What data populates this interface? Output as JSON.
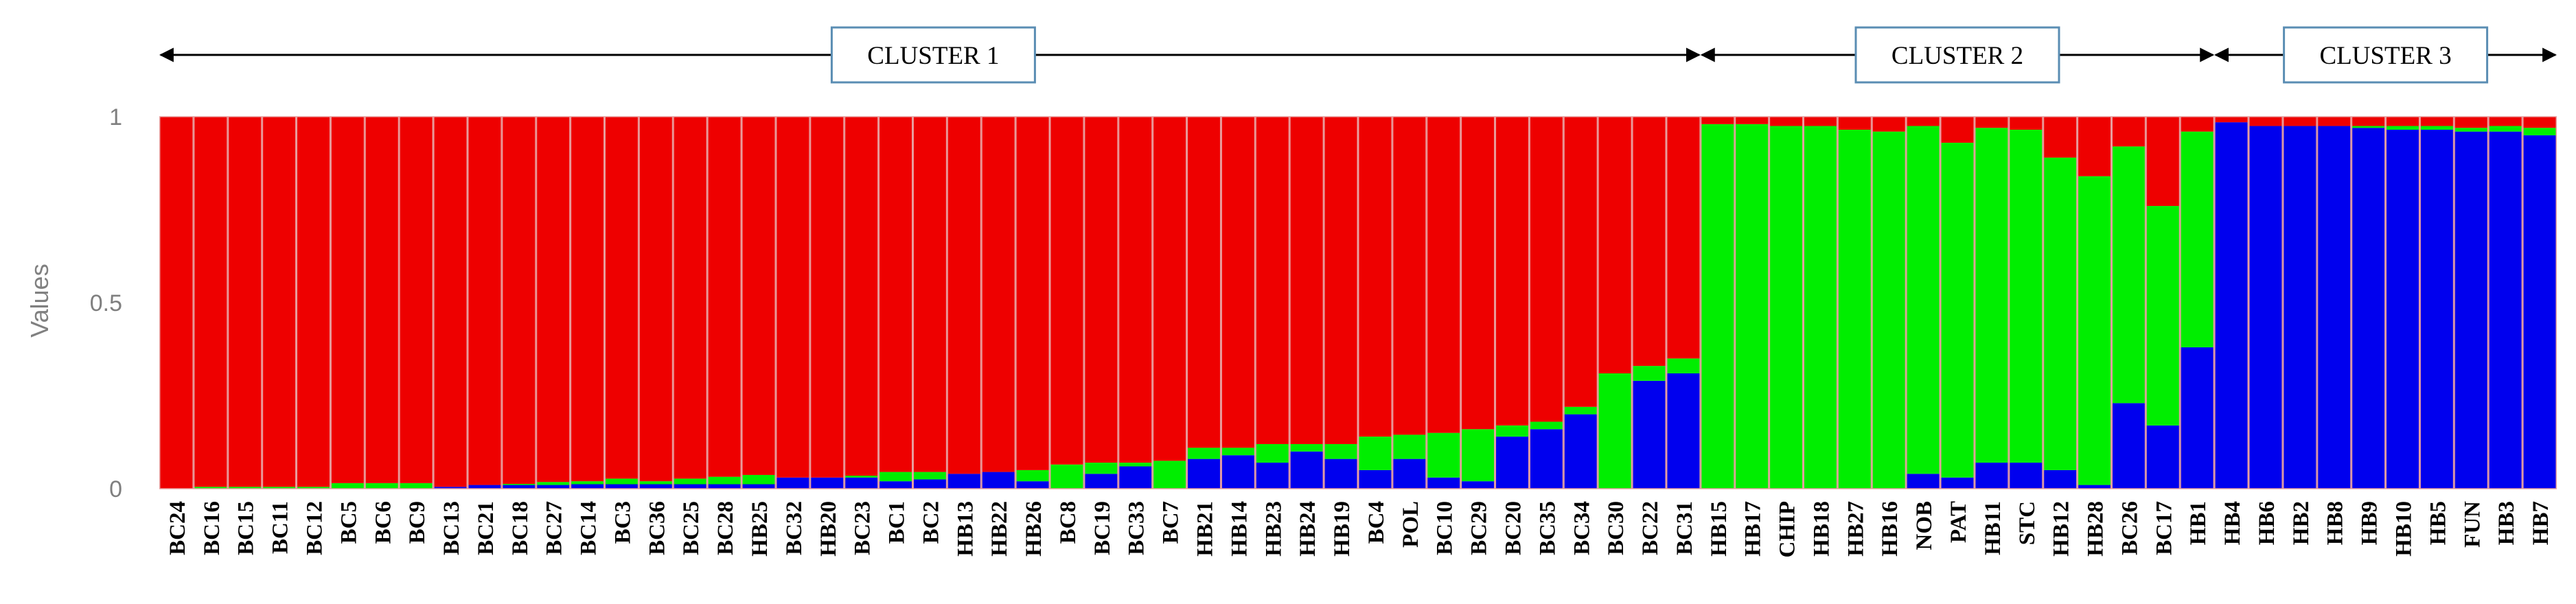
{
  "chart_data": {
    "type": "bar",
    "stacked": true,
    "ylabel": "Values",
    "ylim": [
      0,
      1
    ],
    "yticks": [
      "0",
      "0.5",
      "1"
    ],
    "grid": false,
    "legend": "none",
    "colors": {
      "blue": "#0000ee",
      "green": "#00ee00",
      "red": "#ee0000",
      "outline": "#e8a0a0",
      "arrow": "#000000",
      "cluster_box_border": "#5a8db3"
    },
    "clusters": [
      {
        "label": "CLUSTER 1",
        "from": "BC24",
        "to": "BC31"
      },
      {
        "label": "CLUSTER 2",
        "from": "HB15",
        "to": "HB1"
      },
      {
        "label": "CLUSTER 3",
        "from": "HB4",
        "to": "HB7"
      }
    ],
    "categories": [
      "BC24",
      "BC16",
      "BC15",
      "BC11",
      "BC12",
      "BC5",
      "BC6",
      "BC9",
      "BC13",
      "BC21",
      "BC18",
      "BC27",
      "BC14",
      "BC3",
      "BC36",
      "BC25",
      "BC28",
      "HB25",
      "BC32",
      "HB20",
      "BC23",
      "BC1",
      "BC2",
      "HB13",
      "HB22",
      "HB26",
      "BC8",
      "BC19",
      "BC33",
      "BC7",
      "HB21",
      "HB14",
      "HB23",
      "HB24",
      "HB19",
      "BC4",
      "POL",
      "BC10",
      "BC29",
      "BC20",
      "BC35",
      "BC34",
      "BC30",
      "BC22",
      "BC31",
      "HB15",
      "HB17",
      "CHIP",
      "HB18",
      "HB27",
      "HB16",
      "NOB",
      "PAT",
      "HB11",
      "STC",
      "HB12",
      "HB28",
      "BC26",
      "BC17",
      "HB1",
      "HB4",
      "HB6",
      "HB2",
      "HB8",
      "HB9",
      "HB10",
      "HB5",
      "FUN",
      "HB3",
      "HB7"
    ],
    "series": [
      {
        "name": "",
        "color": "blue",
        "values": [
          0.0,
          0.0,
          0.0,
          0.0,
          0.0,
          0.0,
          0.0,
          0.0,
          0.005,
          0.01,
          0.01,
          0.01,
          0.012,
          0.012,
          0.012,
          0.012,
          0.012,
          0.012,
          0.03,
          0.03,
          0.03,
          0.02,
          0.025,
          0.04,
          0.045,
          0.02,
          0.0,
          0.04,
          0.06,
          0.0,
          0.08,
          0.09,
          0.07,
          0.1,
          0.08,
          0.05,
          0.08,
          0.03,
          0.02,
          0.14,
          0.16,
          0.2,
          0.0,
          0.29,
          0.31,
          0.0,
          0.0,
          0.0,
          0.0,
          0.0,
          0.0,
          0.04,
          0.03,
          0.07,
          0.07,
          0.05,
          0.01,
          0.23,
          0.17,
          0.38,
          0.985,
          0.975,
          0.975,
          0.975,
          0.97,
          0.965,
          0.965,
          0.96,
          0.96,
          0.95
        ]
      },
      {
        "name": "",
        "color": "green",
        "values": [
          0.0,
          0.005,
          0.005,
          0.005,
          0.005,
          0.015,
          0.015,
          0.015,
          0.0,
          0.0,
          0.003,
          0.008,
          0.008,
          0.015,
          0.008,
          0.015,
          0.02,
          0.025,
          0.0,
          0.0,
          0.005,
          0.025,
          0.02,
          0.0,
          0.0,
          0.03,
          0.065,
          0.03,
          0.01,
          0.075,
          0.03,
          0.02,
          0.05,
          0.02,
          0.04,
          0.09,
          0.065,
          0.12,
          0.14,
          0.03,
          0.02,
          0.02,
          0.31,
          0.04,
          0.04,
          0.98,
          0.98,
          0.975,
          0.975,
          0.965,
          0.96,
          0.935,
          0.9,
          0.9,
          0.895,
          0.84,
          0.83,
          0.69,
          0.59,
          0.58,
          0.0,
          0.0,
          0.0,
          0.0,
          0.005,
          0.01,
          0.01,
          0.01,
          0.015,
          0.02
        ]
      },
      {
        "name": "",
        "color": "red",
        "values": [
          1.0,
          0.995,
          0.995,
          0.995,
          0.995,
          0.985,
          0.985,
          0.985,
          0.995,
          0.99,
          0.987,
          0.982,
          0.98,
          0.973,
          0.98,
          0.973,
          0.968,
          0.963,
          0.97,
          0.97,
          0.965,
          0.955,
          0.955,
          0.96,
          0.955,
          0.95,
          0.935,
          0.93,
          0.93,
          0.925,
          0.89,
          0.89,
          0.88,
          0.88,
          0.88,
          0.86,
          0.855,
          0.85,
          0.84,
          0.83,
          0.82,
          0.78,
          0.69,
          0.67,
          0.65,
          0.02,
          0.02,
          0.025,
          0.025,
          0.035,
          0.04,
          0.025,
          0.07,
          0.03,
          0.035,
          0.11,
          0.16,
          0.08,
          0.24,
          0.04,
          0.015,
          0.025,
          0.025,
          0.025,
          0.025,
          0.025,
          0.025,
          0.03,
          0.025,
          0.03
        ]
      }
    ]
  }
}
